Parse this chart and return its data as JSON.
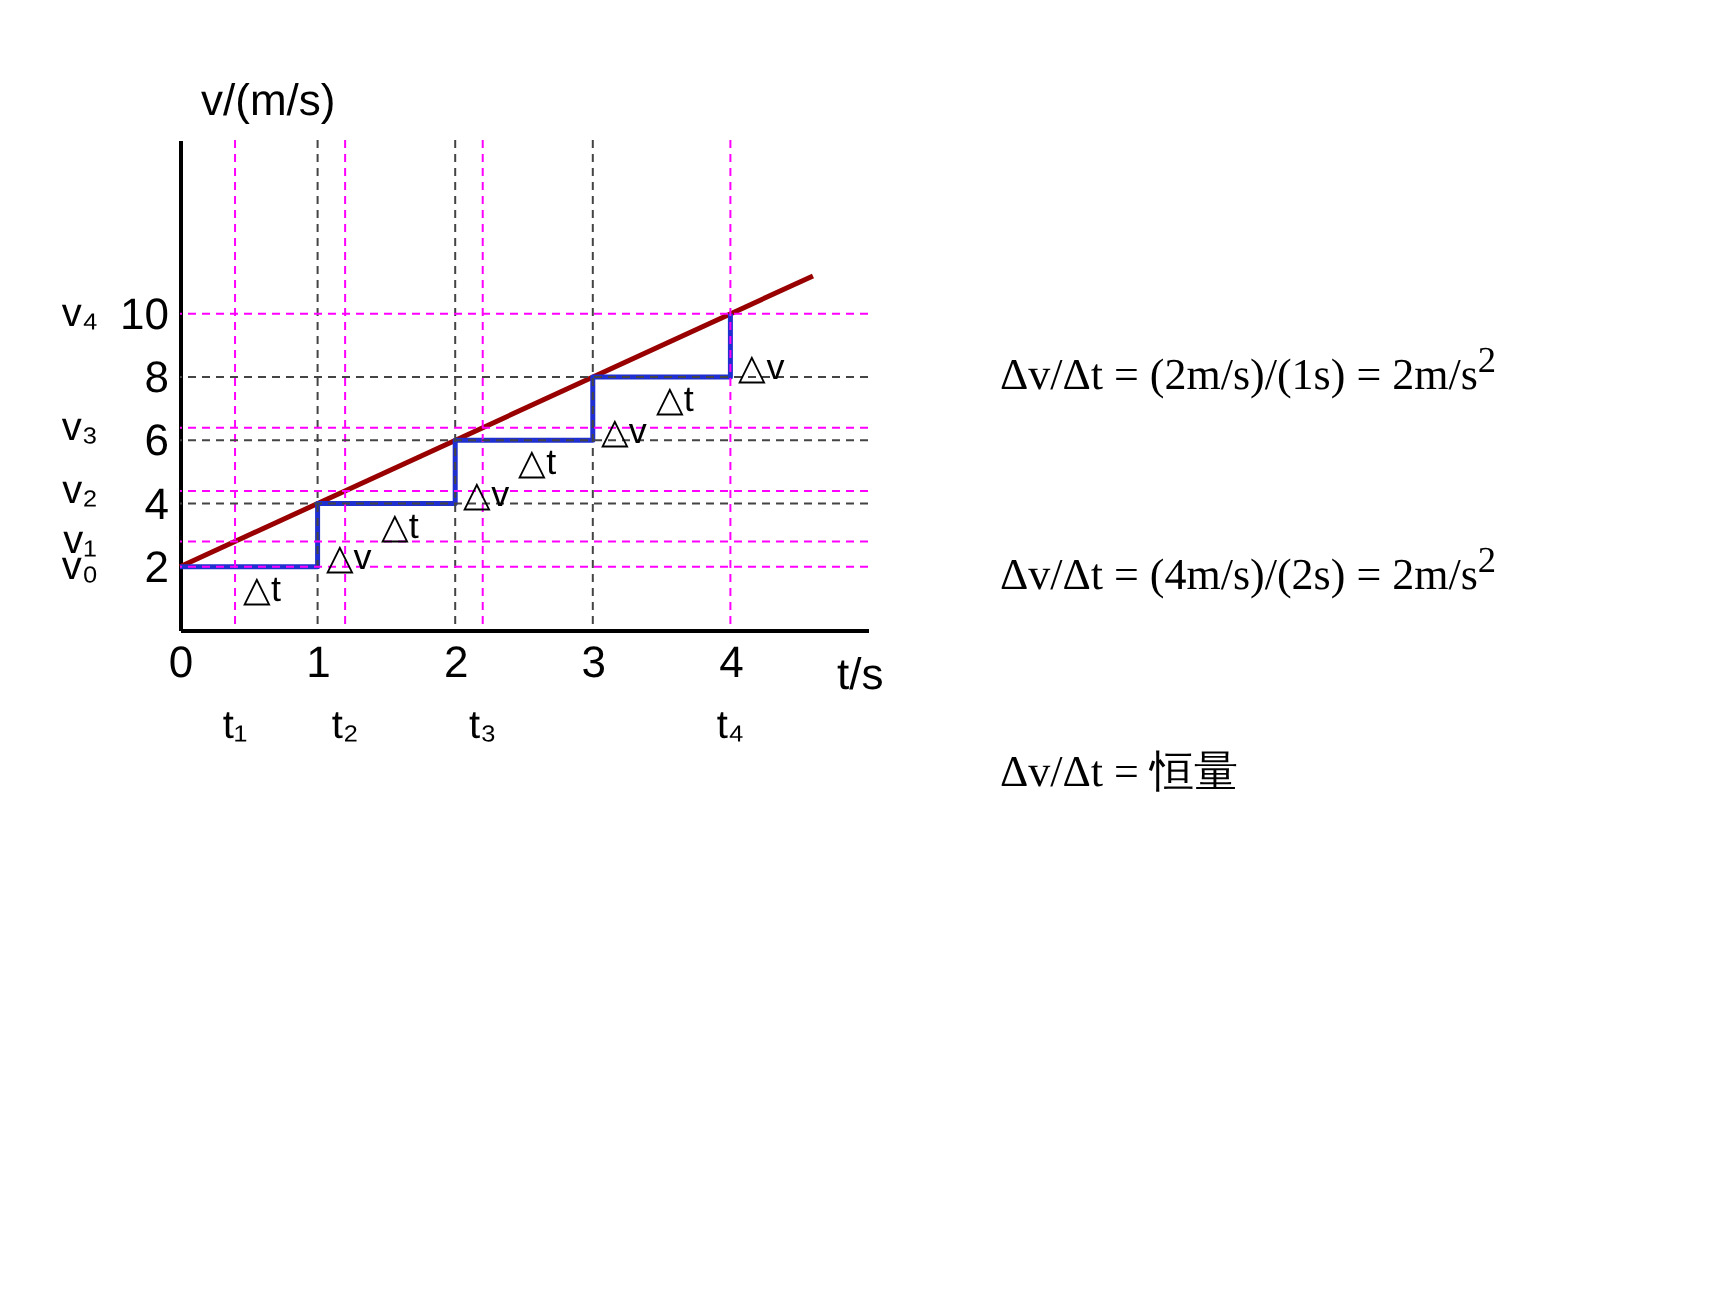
{
  "chart_data": {
    "type": "line",
    "xlabel": "t/s",
    "ylabel": "v/(m/s)",
    "xlim": [
      0,
      5
    ],
    "ylim": [
      0,
      15.5
    ],
    "xticks": [
      0,
      1,
      2,
      3,
      4
    ],
    "yticks": [
      2,
      4,
      6,
      8,
      10
    ],
    "grid": false,
    "legend": false,
    "series": [
      {
        "type": "line",
        "color": "#990000",
        "x": [
          0,
          4.6
        ],
        "values": [
          2,
          11.2
        ]
      },
      {
        "type": "step",
        "color": "#1f2fd0",
        "x": [
          0,
          1,
          2,
          3,
          4
        ],
        "values": [
          2,
          4,
          6,
          8,
          10
        ]
      }
    ],
    "ref_lines": [
      {
        "axis": "x",
        "value": 0.4,
        "label": "t₁",
        "color": "#ff00ff",
        "line_style": "dashed"
      },
      {
        "axis": "x",
        "value": 1.2,
        "label": "t₂",
        "color": "#ff00ff",
        "line_style": "dashed"
      },
      {
        "axis": "x",
        "value": 2.2,
        "label": "t₃",
        "color": "#ff00ff",
        "line_style": "dashed"
      },
      {
        "axis": "x",
        "value": 4,
        "label": "t₄",
        "color": "#ff00ff",
        "line_style": "dashed"
      },
      {
        "axis": "x",
        "value": 1,
        "color": "#444444",
        "line_style": "dashed"
      },
      {
        "axis": "x",
        "value": 2,
        "color": "#444444",
        "line_style": "dashed"
      },
      {
        "axis": "x",
        "value": 3,
        "color": "#444444",
        "line_style": "dashed"
      },
      {
        "axis": "y",
        "value": 2,
        "label": "v₀",
        "color": "#ff00ff",
        "line_style": "dashed"
      },
      {
        "axis": "y",
        "value": 2.8,
        "label": "v₁",
        "color": "#ff00ff",
        "line_style": "dashed"
      },
      {
        "axis": "y",
        "value": 4.4,
        "label": "v₂",
        "color": "#ff00ff",
        "line_style": "dashed"
      },
      {
        "axis": "y",
        "value": 6.4,
        "label": "v₃",
        "color": "#ff00ff",
        "line_style": "dashed"
      },
      {
        "axis": "y",
        "value": 10,
        "label": "v₄",
        "color": "#ff00ff",
        "line_style": "dashed"
      },
      {
        "axis": "y",
        "value": 4,
        "color": "#444444",
        "line_style": "dashed"
      },
      {
        "axis": "y",
        "value": 6,
        "color": "#444444",
        "line_style": "dashed"
      },
      {
        "axis": "y",
        "value": 8,
        "color": "#444444",
        "line_style": "dashed"
      }
    ],
    "annotations": [
      {
        "text": "△t",
        "x": 0.4,
        "y": 2
      },
      {
        "text": "△v",
        "x": 1,
        "y": 3
      },
      {
        "text": "△t",
        "x": 1.4,
        "y": 4
      },
      {
        "text": "△v",
        "x": 2,
        "y": 5
      },
      {
        "text": "△t",
        "x": 2.4,
        "y": 6
      },
      {
        "text": "△v",
        "x": 3,
        "y": 7
      },
      {
        "text": "△t",
        "x": 3.4,
        "y": 8
      },
      {
        "text": "△v",
        "x": 4,
        "y": 9
      },
      "Δv/Δt = (2m/s)/(1s) = 2m/s$^{2}$",
      "Δv/Δt = (4m/s)/(2s) = 2m/s$^{2}$",
      "Δv/Δt = 恒量"
    ]
  }
}
